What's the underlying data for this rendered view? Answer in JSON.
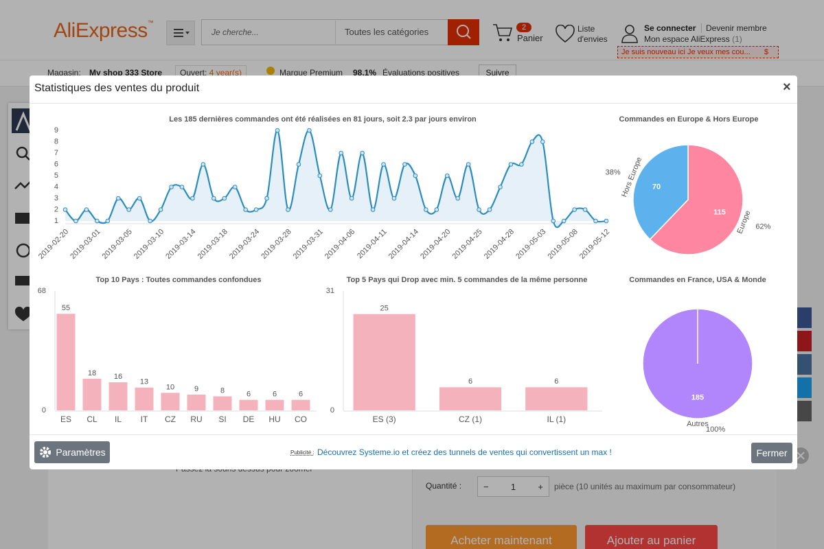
{
  "header": {
    "logo": "AliExpress",
    "logo_tm": "™",
    "search_placeholder": "Je cherche...",
    "category": "Toutes les catégories",
    "cart_count": 2,
    "cart": "Panier",
    "wishlist_1": "Liste",
    "wishlist_2": "d'envies",
    "sign_in": "Se connecter",
    "join": "Devenir membre",
    "account": "Mon espace AliExpress",
    "account_count": "(1)",
    "promo": "Je suis nouveau ici Je veux mes cou...",
    "promo_icon": "$"
  },
  "store_bar": {
    "label": "Magasin:",
    "store": "My shop 333 Store",
    "open_label": "Ouvert:",
    "open_value": "4 year(s)",
    "brand": "Marque Premium",
    "rating": "98.1%",
    "rating_label": "Évaluations positives",
    "follow": "Suivre"
  },
  "product": {
    "zoom_hint": "Passez la souris dessus pour zoomer",
    "quantity_label": "Quantité :",
    "quantity": 1,
    "minus": "−",
    "plus": "+",
    "quantity_note": "pièce (10 unités au maximum par consommateur)",
    "buy": "Acheter maintenant",
    "add_to_cart": "Ajouter au panier"
  },
  "modal": {
    "title": "Statistiques des ventes du produit",
    "close": "×",
    "settings": "Paramètres",
    "ad_label": "Publicité :",
    "ad_text": "Découvrez Systeme.io et créez des tunnels de ventes qui convertissent un max !",
    "close_button": "Fermer"
  },
  "chart_data": [
    {
      "type": "line",
      "title": "Les 185 dernières commandes ont été réalisées en 81 jours, soit 2.3 par jours environ",
      "categories": [
        "2019-02-20",
        null,
        null,
        "2019-03-01",
        null,
        null,
        "2019-03-05",
        null,
        null,
        "2019-03-10",
        null,
        null,
        "2019-03-14",
        null,
        null,
        "2019-03-18",
        null,
        null,
        "2019-03-24",
        null,
        null,
        "2019-03-28",
        null,
        null,
        "2019-03-31",
        null,
        null,
        "2019-04-06",
        null,
        null,
        "2019-04-11",
        null,
        null,
        "2019-04-14",
        null,
        null,
        "2019-04-20",
        null,
        null,
        "2019-04-25",
        null,
        null,
        "2019-04-28",
        null,
        null,
        "2019-05-03",
        null,
        null,
        "2019-05-08",
        null,
        null,
        "2019-05-12"
      ],
      "values": [
        2,
        1,
        2,
        1,
        1,
        3,
        2,
        3,
        1,
        2,
        4,
        4,
        3,
        6,
        3,
        3,
        4,
        2,
        2,
        3,
        9,
        2,
        6,
        9,
        5,
        2,
        7,
        3,
        7,
        2,
        6,
        3,
        6,
        5,
        2,
        2,
        5,
        3,
        6,
        2,
        2,
        4,
        6,
        6,
        8,
        8,
        1,
        1,
        2,
        2,
        1,
        1
      ],
      "color": "#2b8cbe",
      "area_color": "#e6f0f8",
      "ylim": [
        1,
        9
      ],
      "yticks": [
        1,
        2,
        3,
        4,
        5,
        6,
        7,
        8,
        9
      ]
    },
    {
      "type": "bar",
      "title": "Top 10 Pays : Toutes commandes confondues",
      "categories": [
        "ES",
        "CL",
        "IL",
        "IT",
        "CZ",
        "RU",
        "SI",
        "DE",
        "HU",
        "CO"
      ],
      "values": [
        55,
        18,
        16,
        13,
        10,
        9,
        8,
        6,
        6,
        6
      ],
      "color": "#f4b3bc",
      "ylim": [
        0,
        68
      ],
      "yticks": [
        0,
        68
      ]
    },
    {
      "type": "bar",
      "title": "Top 5 Pays qui Drop avec min. 5 commandes de la même personne",
      "categories": [
        "ES (3)",
        "CZ (1)",
        "IL (1)"
      ],
      "values": [
        25,
        6,
        6
      ],
      "color": "#f4b3bc",
      "ylim": [
        0,
        31
      ],
      "yticks": [
        0,
        31
      ]
    },
    {
      "type": "pie",
      "title": "Commandes en Europe & Hors Europe",
      "categories": [
        "Europe",
        "Hors Europe"
      ],
      "values": [
        115,
        70
      ],
      "percent_labels": [
        "62%",
        "38%"
      ],
      "colors": [
        "#ff86a1",
        "#5db2ee"
      ]
    },
    {
      "type": "pie",
      "title": "Commandes en France, USA & Monde",
      "categories": [
        "Autres"
      ],
      "values": [
        185
      ],
      "percent_labels": [
        "100%"
      ],
      "colors": [
        "#b185fb"
      ]
    }
  ]
}
